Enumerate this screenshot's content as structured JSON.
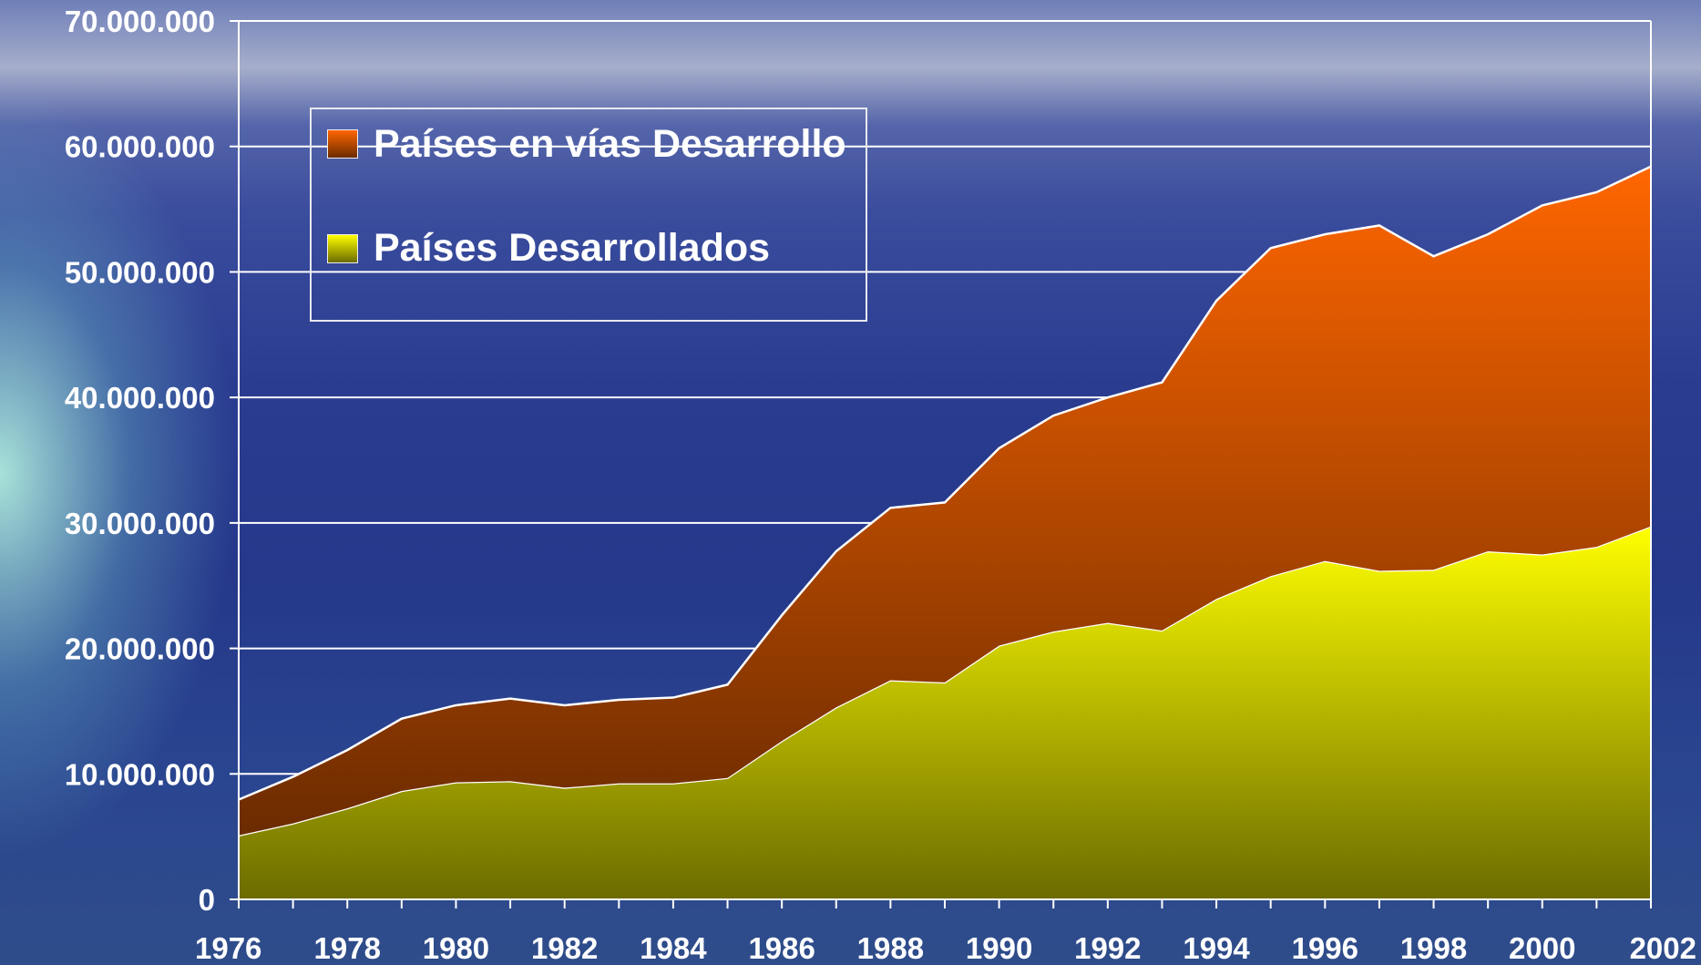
{
  "chart_data": {
    "type": "stacked_area",
    "x": [
      1976,
      1977,
      1978,
      1979,
      1980,
      1981,
      1982,
      1983,
      1984,
      1985,
      1986,
      1987,
      1988,
      1989,
      1990,
      1991,
      1992,
      1993,
      1994,
      1995,
      1996,
      1997,
      1998,
      1999,
      2000,
      2001,
      2002
    ],
    "series": [
      {
        "name": "Países Desarrollados",
        "color": "#ffff00",
        "values": [
          5100000,
          6050000,
          7260000,
          8640000,
          9330000,
          9420000,
          8900000,
          9250000,
          9250000,
          9680000,
          12620000,
          15300000,
          17460000,
          17290000,
          20220000,
          21350000,
          22040000,
          21430000,
          23940000,
          25760000,
          26970000,
          26190000,
          26270000,
          27740000,
          27480000,
          28090000,
          29730000
        ]
      },
      {
        "name": "Países en vías Desarrollo",
        "color": "#ff6600",
        "values": [
          2850000,
          3720000,
          4640000,
          5760000,
          6140000,
          6580000,
          6570000,
          6650000,
          6830000,
          7430000,
          10020000,
          12440000,
          13740000,
          14340000,
          15730000,
          17200000,
          17960000,
          19770000,
          23760000,
          26140000,
          26030000,
          27510000,
          24980000,
          25260000,
          27820000,
          28260000,
          28670000
        ]
      }
    ],
    "xlim": [
      1976,
      2002
    ],
    "xticks": [
      1976,
      1978,
      1980,
      1982,
      1984,
      1986,
      1988,
      1990,
      1992,
      1994,
      1996,
      1998,
      2000,
      2002
    ],
    "ylim": [
      0,
      70000000
    ],
    "yticks": [
      0,
      {
        "value": 10000000,
        "label": "10.000.000"
      },
      {
        "value": 20000000,
        "label": "20.000.000"
      },
      {
        "value": 30000000,
        "label": "30.000.000"
      },
      {
        "value": 40000000,
        "label": "40.000.000"
      },
      {
        "value": 50000000,
        "label": "50.000.000"
      },
      {
        "value": 60000000,
        "label": "60.000.000"
      },
      {
        "value": 70000000,
        "label": "70.000.000"
      }
    ],
    "grid": true
  }
}
